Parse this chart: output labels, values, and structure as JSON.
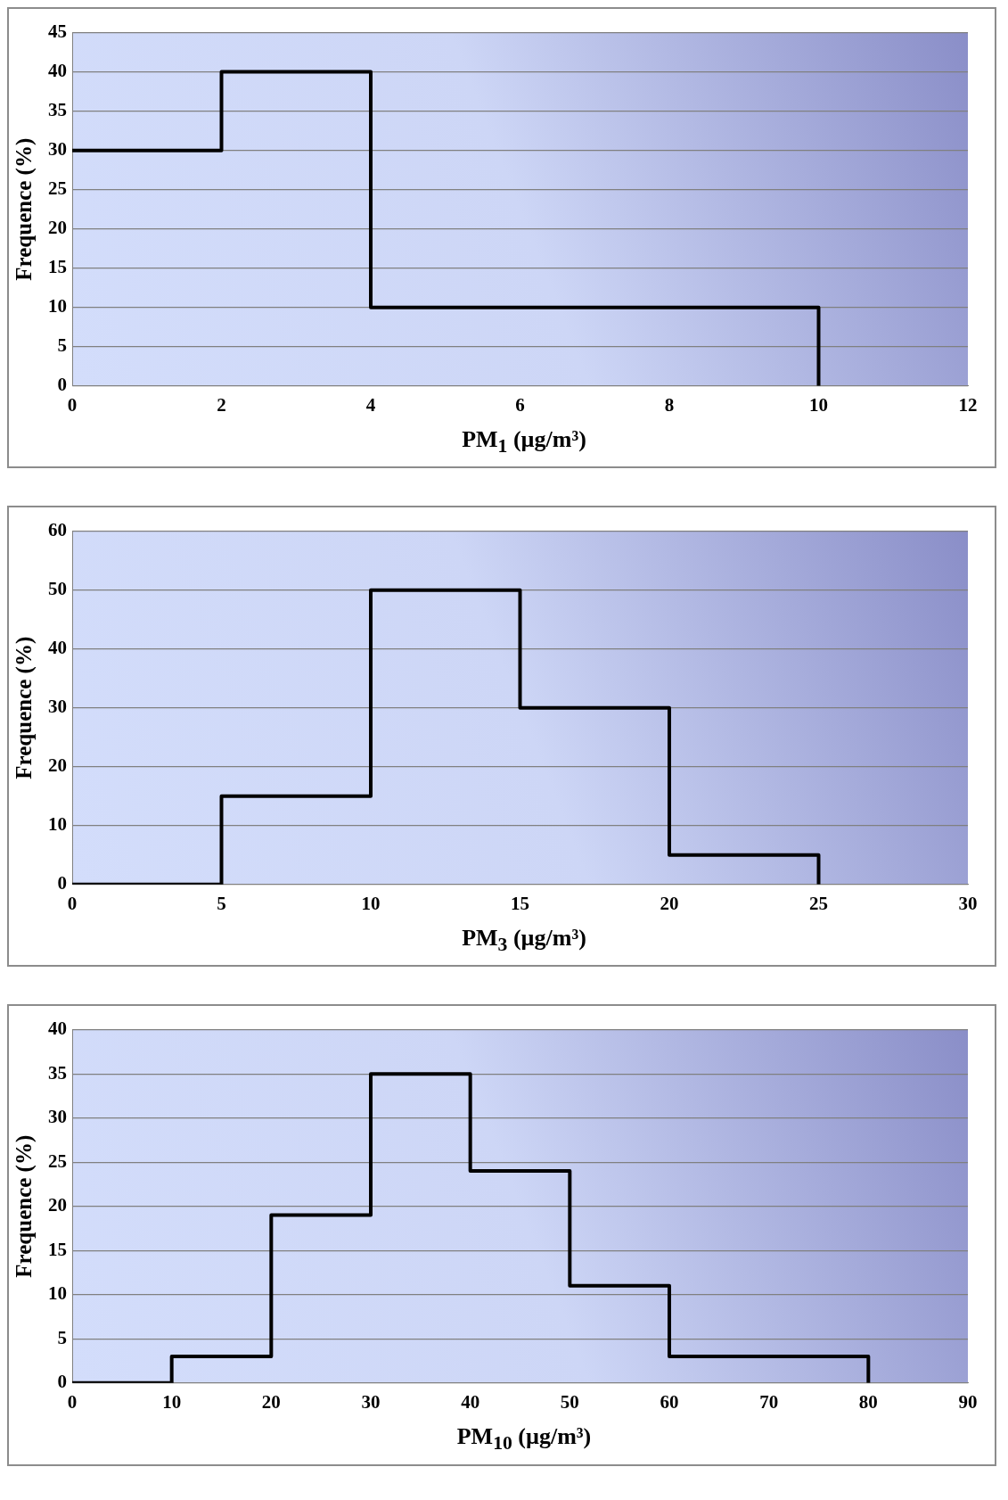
{
  "chart_data": [
    {
      "type": "step",
      "xlabel": "PM$_{1}$ (µg/m³)",
      "ylabel": "Frequence (%)",
      "xlim": [
        0,
        12
      ],
      "xticks": [
        0,
        2,
        4,
        6,
        8,
        10,
        12
      ],
      "ylim": [
        0,
        45
      ],
      "yticks": [
        0,
        5,
        10,
        15,
        20,
        25,
        30,
        35,
        40,
        45
      ],
      "grid": "y",
      "legend": false,
      "series": [
        {
          "color": "#000000",
          "x": [
            0,
            2,
            4,
            10
          ],
          "values": [
            30,
            40,
            10,
            0
          ]
        }
      ]
    },
    {
      "type": "step",
      "xlabel": "PM$_{3}$ (µg/m³)",
      "ylabel": "Frequence (%)",
      "xlim": [
        0,
        30
      ],
      "xticks": [
        0,
        5,
        10,
        15,
        20,
        25,
        30
      ],
      "ylim": [
        0,
        60
      ],
      "yticks": [
        0,
        10,
        20,
        30,
        40,
        50,
        60
      ],
      "grid": "y",
      "legend": false,
      "series": [
        {
          "color": "#000000",
          "x": [
            0,
            5,
            10,
            15,
            20,
            25
          ],
          "values": [
            0,
            15,
            50,
            30,
            5,
            0
          ]
        }
      ]
    },
    {
      "type": "step",
      "xlabel": "PM$_{10}$ (µg/m³)",
      "ylabel": "Frequence (%)",
      "xlim": [
        0,
        90
      ],
      "xticks": [
        0,
        10,
        20,
        30,
        40,
        50,
        60,
        70,
        80,
        90
      ],
      "ylim": [
        0,
        40
      ],
      "yticks": [
        0,
        5,
        10,
        15,
        20,
        25,
        30,
        35,
        40
      ],
      "grid": "y",
      "legend": false,
      "series": [
        {
          "color": "#000000",
          "x": [
            0,
            10,
            20,
            30,
            40,
            50,
            60,
            80
          ],
          "values": [
            0,
            3,
            19,
            35,
            24,
            11,
            3,
            0
          ]
        }
      ]
    }
  ]
}
